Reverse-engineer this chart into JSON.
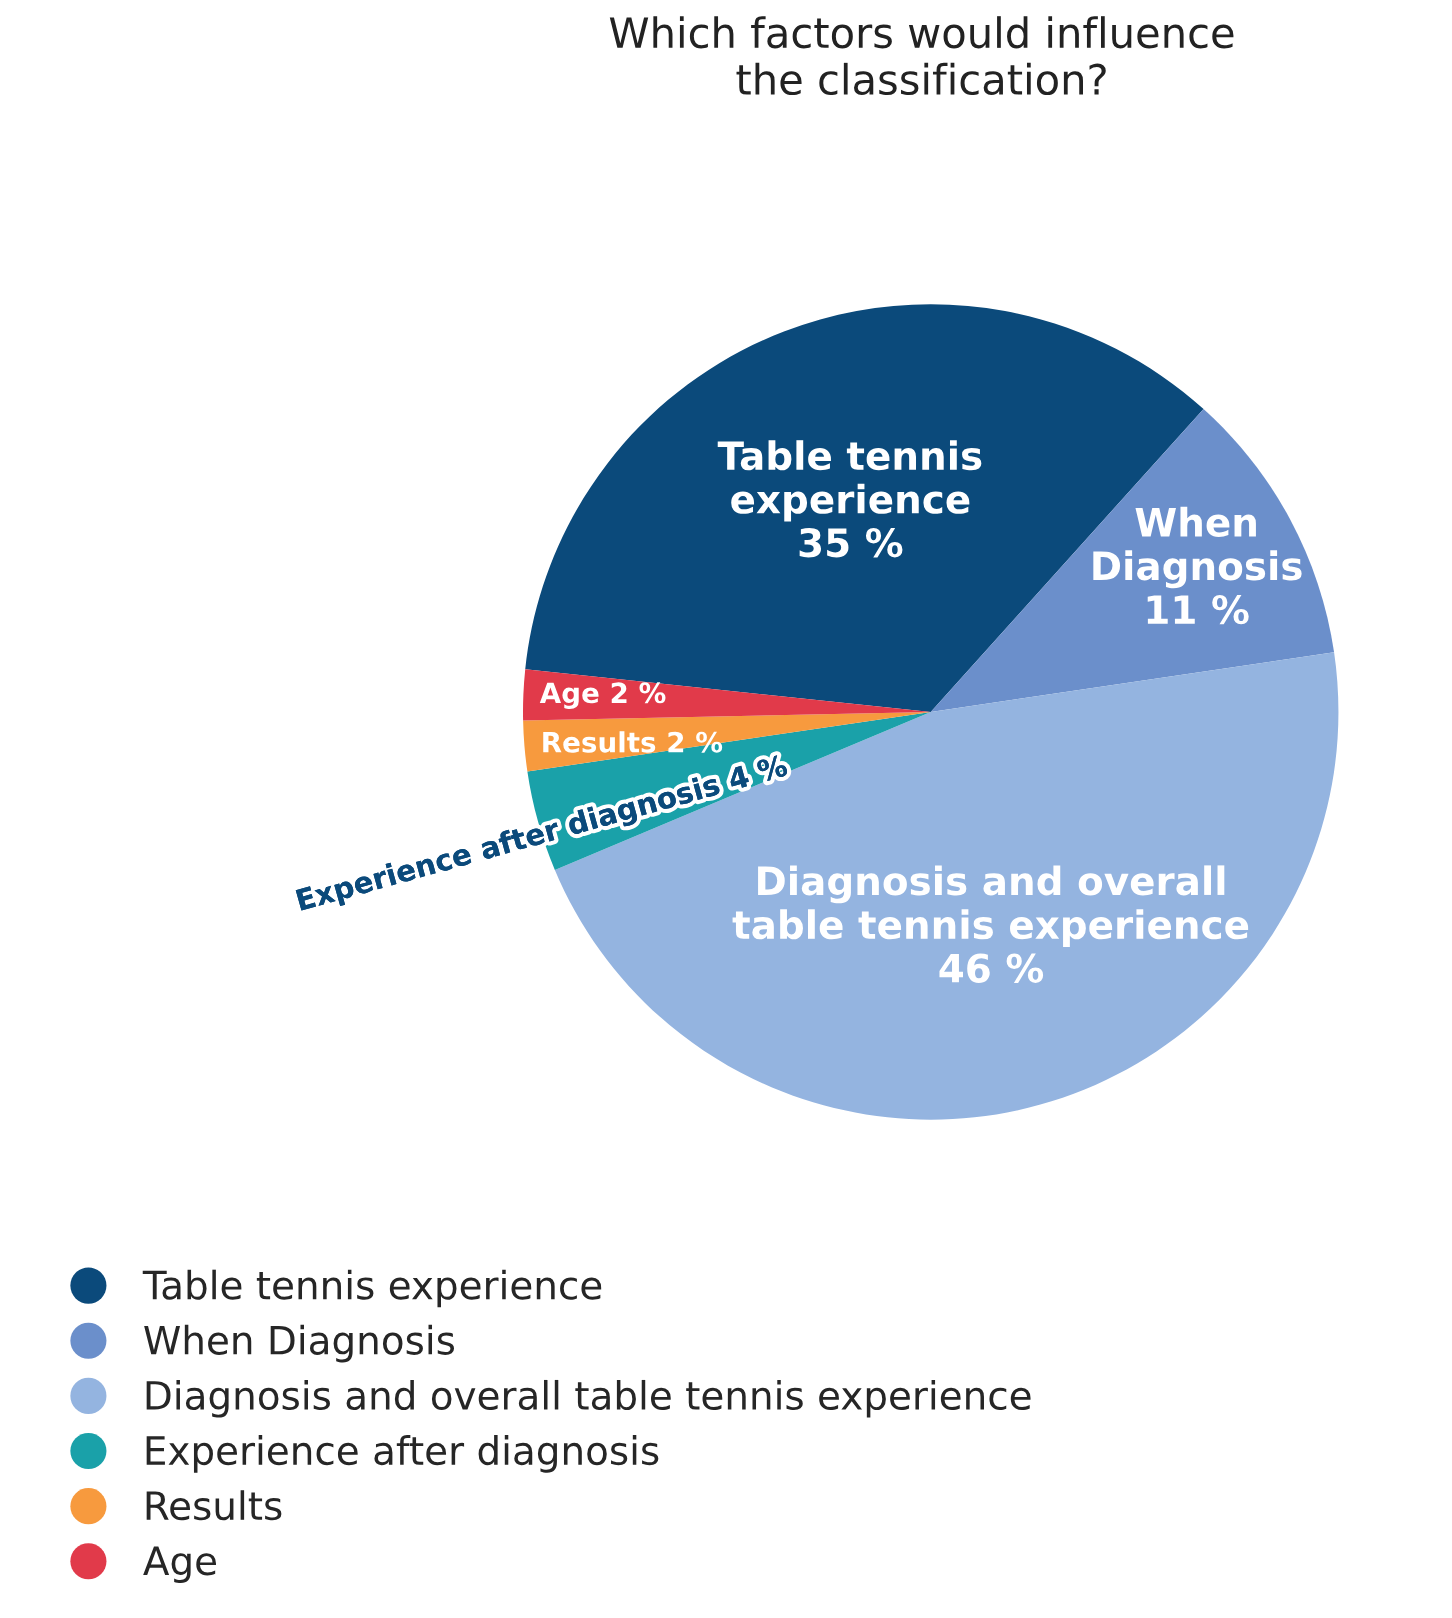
{
  "chart_data": {
    "type": "pie",
    "title": "Which factors would influence\nthe classification?",
    "categories": [
      "Table tennis experience",
      "When Diagnosis",
      "Diagnosis and overall table tennis experience",
      "Experience after diagnosis",
      "Results",
      "Age"
    ],
    "values": [
      35,
      11,
      46,
      4,
      2,
      2
    ],
    "value_labels": [
      "35 %",
      "11 %",
      "46 %",
      "4 %",
      "2 %",
      "2 %"
    ],
    "colors": [
      "#0b4a7b",
      "#6b8fcb",
      "#94b4e0",
      "#1aa1a9",
      "#f79a3e",
      "#e13a4a"
    ],
    "legend": "bottom left"
  }
}
